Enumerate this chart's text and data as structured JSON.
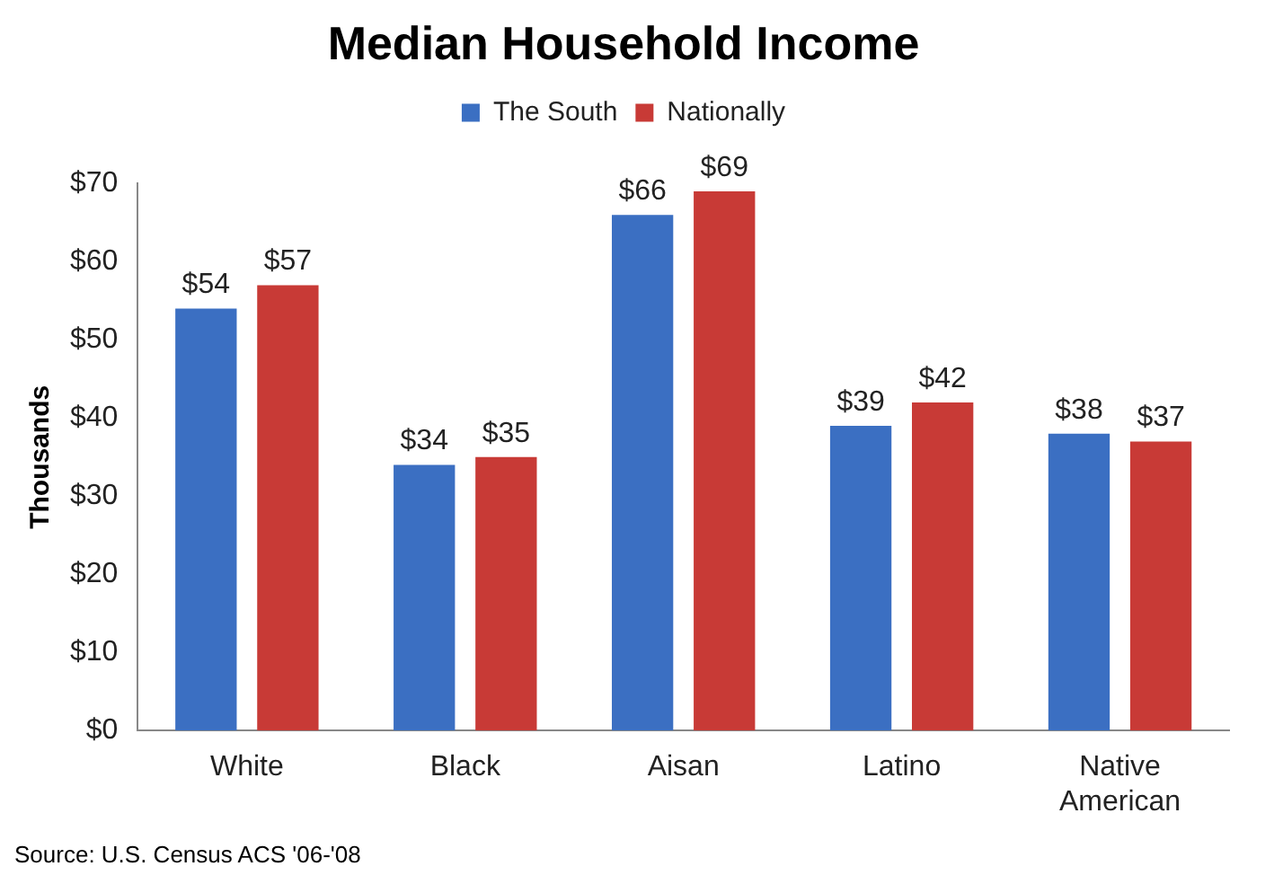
{
  "chart_data": {
    "type": "bar",
    "title": "Median Household Income",
    "ylabel": "Thousands",
    "categories": [
      "White",
      "Black",
      "Aisan",
      "Latino",
      "Native American"
    ],
    "series": [
      {
        "name": "The South",
        "color": "#3b6fc2",
        "values": [
          54,
          34,
          66,
          39,
          38
        ],
        "value_labels": [
          "$54",
          "$34",
          "$66",
          "$39",
          "$38"
        ]
      },
      {
        "name": "Nationally",
        "color": "#c83a36",
        "values": [
          57,
          35,
          69,
          42,
          37
        ],
        "value_labels": [
          "$57",
          "$35",
          "$69",
          "$42",
          "$37"
        ]
      }
    ],
    "ylim": [
      0,
      70
    ],
    "yticks": [
      {
        "value": 0,
        "label": "$0"
      },
      {
        "value": 10,
        "label": "$10"
      },
      {
        "value": 20,
        "label": "$20"
      },
      {
        "value": 30,
        "label": "$30"
      },
      {
        "value": 40,
        "label": "$40"
      },
      {
        "value": 50,
        "label": "$50"
      },
      {
        "value": 60,
        "label": "$60"
      },
      {
        "value": 70,
        "label": "$70"
      }
    ],
    "grid": false,
    "legend": "top",
    "annotations": [
      "Source: U.S. Census ACS '06-'08"
    ]
  }
}
